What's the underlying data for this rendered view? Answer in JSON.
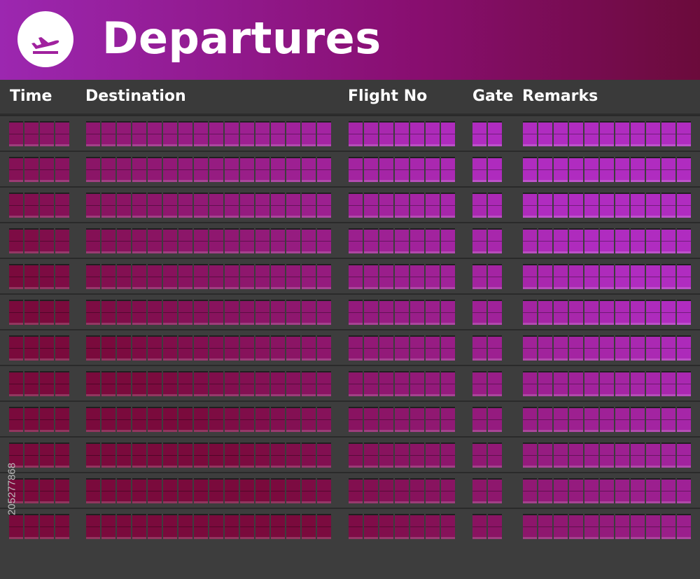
{
  "header": {
    "title": "Departures",
    "logo_icon": "departures-plane-icon",
    "gradient": [
      "#9c27b0",
      "#880e6f",
      "#6b0b3b"
    ]
  },
  "columns": [
    {
      "key": "time",
      "label": "Time",
      "cells": 4
    },
    {
      "key": "destination",
      "label": "Destination",
      "cells": 16
    },
    {
      "key": "flight_no",
      "label": "Flight No",
      "cells": 7
    },
    {
      "key": "gate",
      "label": "Gate",
      "cells": 2
    },
    {
      "key": "remarks",
      "label": "Remarks",
      "cells": 11
    }
  ],
  "board": {
    "row_count": 12,
    "colors": {
      "dark": "#7a0a3c",
      "bright": "#b02cc0"
    }
  },
  "side_code": "205277868"
}
